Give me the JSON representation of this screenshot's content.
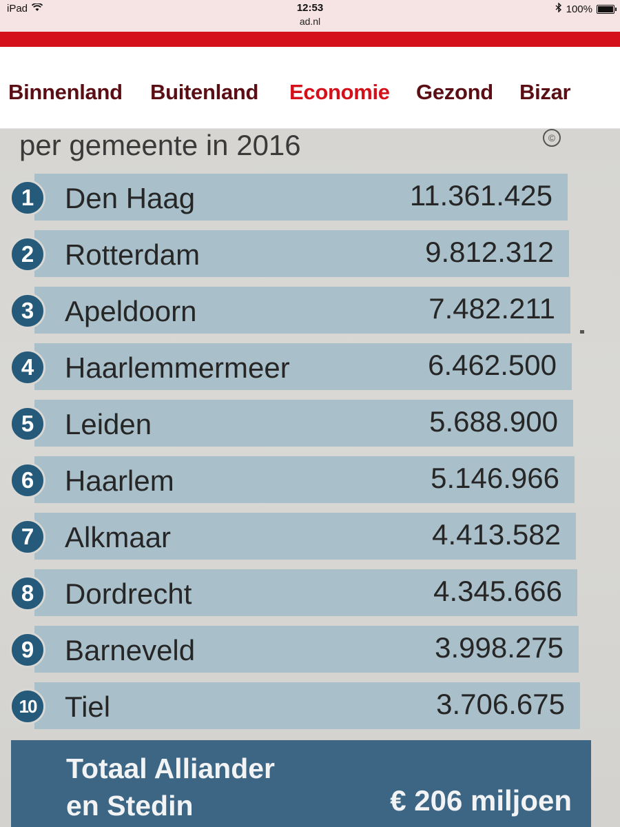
{
  "status_bar": {
    "device": "iPad",
    "time": "12:53",
    "url": "ad.nl",
    "battery": "100%"
  },
  "nav": {
    "items": [
      {
        "label": "Binnenland",
        "active": false
      },
      {
        "label": "Buitenland",
        "active": false
      },
      {
        "label": "Economie",
        "active": true
      },
      {
        "label": "Gezond",
        "active": false
      },
      {
        "label": "Bizar",
        "active": false
      }
    ]
  },
  "article": {
    "subtitle": "per gemeente in 2016",
    "copyright_symbol": "©",
    "ranking": [
      {
        "rank": "1",
        "city": "Den Haag",
        "value": "11.361.425"
      },
      {
        "rank": "2",
        "city": "Rotterdam",
        "value": "9.812.312"
      },
      {
        "rank": "3",
        "city": "Apeldoorn",
        "value": "7.482.211"
      },
      {
        "rank": "4",
        "city": "Haarlemmermeer",
        "value": "6.462.500"
      },
      {
        "rank": "5",
        "city": "Leiden",
        "value": "5.688.900"
      },
      {
        "rank": "6",
        "city": "Haarlem",
        "value": "5.146.966"
      },
      {
        "rank": "7",
        "city": "Alkmaar",
        "value": "4.413.582"
      },
      {
        "rank": "8",
        "city": "Dordrecht",
        "value": "4.345.666"
      },
      {
        "rank": "9",
        "city": "Barneveld",
        "value": "3.998.275"
      },
      {
        "rank": "10",
        "city": "Tiel",
        "value": "3.706.675"
      }
    ],
    "total": {
      "label_line1": "Totaal Alliander",
      "label_line2": "en Stedin",
      "value": "€ 206 miljoen"
    }
  },
  "colors": {
    "brand_red": "#d4111a",
    "nav_text": "#5b0f15",
    "badge_blue": "#265a7a",
    "row_band": "#a9bfc9",
    "total_band": "#3d6684"
  }
}
